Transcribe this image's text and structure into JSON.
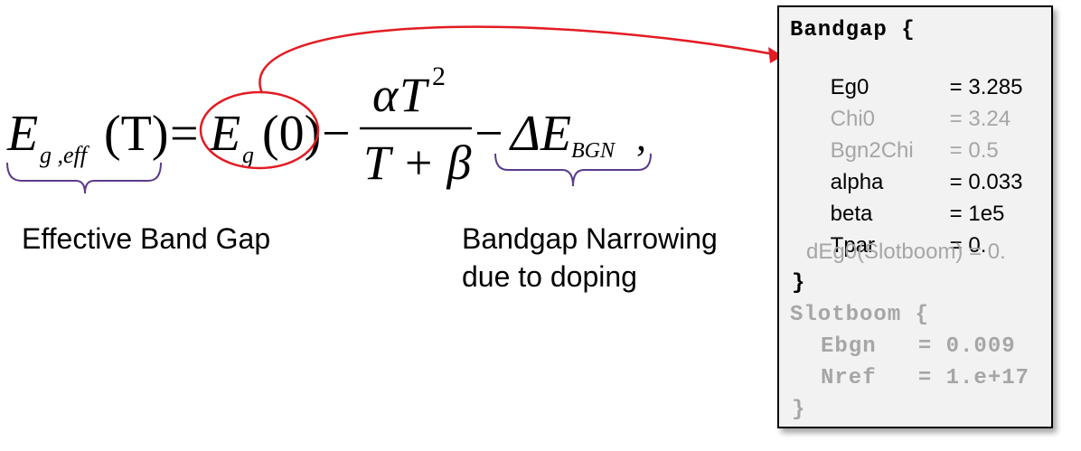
{
  "equation": {
    "lhs_E": "E",
    "lhs_sub": "g ,eff",
    "lhs_arg": "(T)",
    "equals": "=",
    "eg_E": "E",
    "eg_sub": "g",
    "eg_arg": "(0)",
    "minus1": "−",
    "num_alpha": "α",
    "num_T": "T",
    "num_exp": "2",
    "denominator": "T + β",
    "minus2": "−",
    "delta_E": "ΔE",
    "bgn_sub": "BGN",
    "comma": ","
  },
  "labels": {
    "effective_band_gap": "Effective Band Gap",
    "bgn_line1": "Bandgap Narrowing",
    "bgn_line2": "due to doping"
  },
  "param_box": {
    "bandgap_header": "Bandgap {",
    "params": [
      {
        "key": "Eg0",
        "value": "= 3.285"
      },
      {
        "key": "Chi0",
        "value": "= 3.24"
      },
      {
        "key": "Bgn2Chi",
        "value": "= 0.5"
      },
      {
        "key": "alpha",
        "value": "= 0.033"
      },
      {
        "key": "beta",
        "value": "= 1e5"
      },
      {
        "key": "Tpar",
        "value": "= 0."
      }
    ],
    "deg0_line": "dEg0(Slotboom) = 0.",
    "bandgap_close": "}",
    "slotboom_header": "Slotboom {",
    "ebgn_line": "Ebgn   = 0.009",
    "nref_line": "Nref   = 1.e+17",
    "slotboom_close": "}"
  },
  "colors": {
    "highlight_red": "#e31b23",
    "brace_purple": "#5b3b8c",
    "inactive_grey": "#a6a6a6"
  }
}
